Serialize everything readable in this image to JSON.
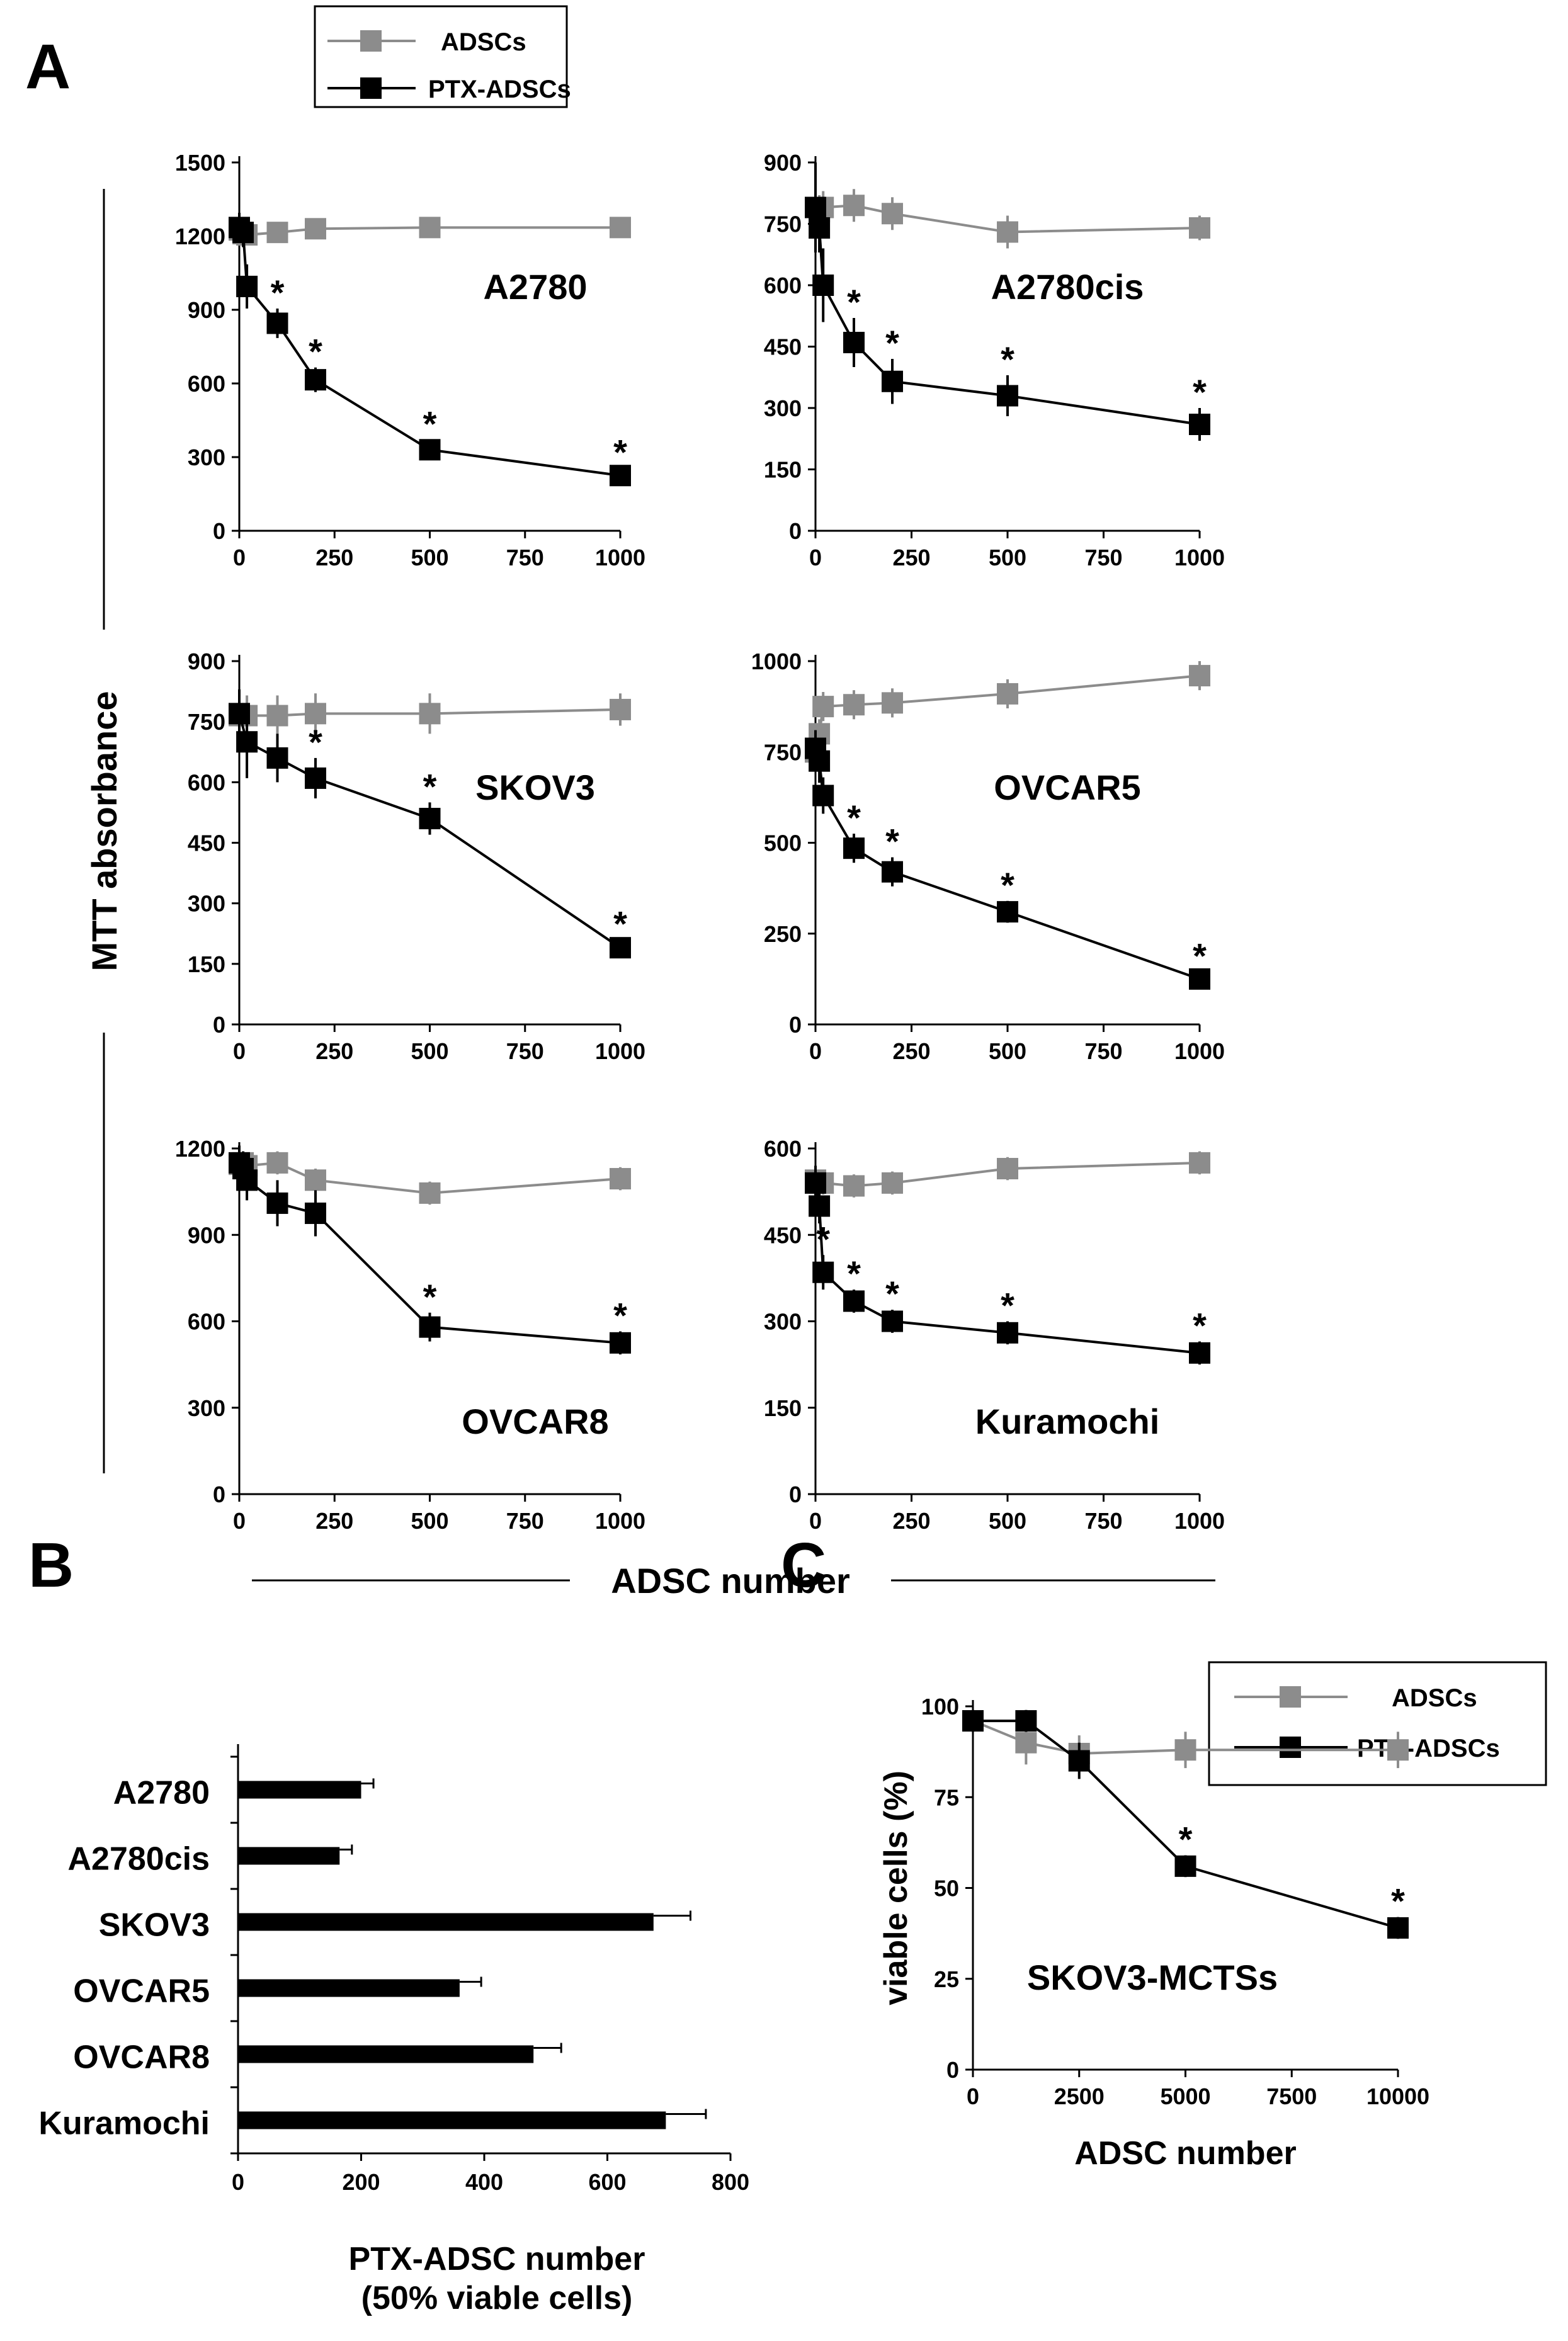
{
  "panel_labels": {
    "a": "A",
    "b": "B",
    "c": "C"
  },
  "legend": {
    "adscs": "ADSCs",
    "ptx": "PTX-ADSCs"
  },
  "shared_labels": {
    "ylabel_a": "MTT absorbance",
    "xlabel_a": "ADSC number"
  },
  "colors": {
    "adscs": "#8c8c8c",
    "ptx": "#000000"
  },
  "chart_data": [
    {
      "id": "a2780",
      "type": "line",
      "label": "A2780",
      "x": [
        0,
        10,
        20,
        100,
        200,
        500,
        1000
      ],
      "ylim": [
        0,
        1500
      ],
      "yticks": [
        "0",
        "300",
        "600",
        "900",
        "1200",
        "1500"
      ],
      "xticks": [
        "0",
        "250",
        "500",
        "750",
        "1000"
      ],
      "series": [
        {
          "name": "ADSCs",
          "values": [
            1225,
            1210,
            1205,
            1215,
            1230,
            1235,
            1235
          ],
          "errors": [
            40,
            40,
            40,
            40,
            40,
            40,
            40
          ]
        },
        {
          "name": "PTX-ADSCs",
          "values": [
            1235,
            1215,
            995,
            845,
            615,
            330,
            225
          ],
          "errors": [
            60,
            60,
            90,
            60,
            50,
            40,
            30
          ],
          "stars": [
            false,
            false,
            false,
            true,
            true,
            true,
            true
          ]
        }
      ]
    },
    {
      "id": "a2780cis",
      "type": "line",
      "label": "A2780cis",
      "x": [
        0,
        10,
        20,
        100,
        200,
        500,
        1000
      ],
      "ylim": [
        0,
        900
      ],
      "yticks": [
        "0",
        "150",
        "300",
        "450",
        "600",
        "750",
        "900"
      ],
      "xticks": [
        "0",
        "250",
        "500",
        "750",
        "1000"
      ],
      "series": [
        {
          "name": "ADSCs",
          "values": [
            790,
            780,
            790,
            795,
            775,
            730,
            740
          ],
          "errors": [
            40,
            40,
            40,
            40,
            40,
            40,
            30
          ]
        },
        {
          "name": "PTX-ADSCs",
          "values": [
            790,
            740,
            600,
            460,
            365,
            330,
            260
          ],
          "errors": [
            110,
            60,
            90,
            60,
            55,
            50,
            40
          ],
          "stars": [
            false,
            false,
            true,
            true,
            true,
            true,
            true
          ]
        }
      ]
    },
    {
      "id": "skov3",
      "type": "line",
      "label": "SKOV3",
      "x": [
        0,
        20,
        100,
        200,
        500,
        1000
      ],
      "ylim": [
        0,
        900
      ],
      "yticks": [
        "0",
        "150",
        "300",
        "450",
        "600",
        "750",
        "900"
      ],
      "xticks": [
        "0",
        "250",
        "500",
        "750",
        "1000"
      ],
      "series": [
        {
          "name": "ADSCs",
          "values": [
            765,
            765,
            765,
            770,
            770,
            780
          ],
          "errors": [
            50,
            50,
            50,
            50,
            50,
            40
          ]
        },
        {
          "name": "PTX-ADSCs",
          "values": [
            770,
            700,
            660,
            610,
            510,
            190
          ],
          "errors": [
            60,
            90,
            60,
            50,
            40,
            20
          ],
          "stars": [
            false,
            false,
            false,
            true,
            true,
            true
          ]
        }
      ]
    },
    {
      "id": "ovcar5",
      "type": "line",
      "label": "OVCAR5",
      "x": [
        0,
        10,
        20,
        100,
        200,
        500,
        1000
      ],
      "ylim": [
        0,
        1000
      ],
      "yticks": [
        "0",
        "250",
        "500",
        "750",
        "1000"
      ],
      "xticks": [
        "0",
        "250",
        "500",
        "750",
        "1000"
      ],
      "series": [
        {
          "name": "ADSCs",
          "values": [
            750,
            800,
            875,
            880,
            885,
            910,
            960
          ],
          "errors": [
            40,
            40,
            40,
            40,
            40,
            40,
            40
          ]
        },
        {
          "name": "PTX-ADSCs",
          "values": [
            760,
            725,
            630,
            485,
            420,
            310,
            125
          ],
          "errors": [
            50,
            60,
            50,
            40,
            40,
            30,
            20
          ],
          "stars": [
            false,
            false,
            false,
            true,
            true,
            true,
            true
          ]
        }
      ]
    },
    {
      "id": "ovcar8",
      "type": "line",
      "label": "OVCAR8",
      "x": [
        0,
        10,
        20,
        100,
        200,
        500,
        1000
      ],
      "ylim": [
        0,
        1200
      ],
      "yticks": [
        "0",
        "300",
        "600",
        "900",
        "1200"
      ],
      "xticks": [
        "0",
        "250",
        "500",
        "750",
        "1000"
      ],
      "series": [
        {
          "name": "ADSCs",
          "values": [
            1145,
            1150,
            1140,
            1150,
            1090,
            1045,
            1095
          ],
          "errors": [
            40,
            40,
            40,
            40,
            40,
            40,
            40
          ]
        },
        {
          "name": "PTX-ADSCs",
          "values": [
            1150,
            1130,
            1090,
            1010,
            975,
            580,
            525
          ],
          "errors": [
            60,
            60,
            70,
            80,
            80,
            50,
            40
          ],
          "stars": [
            false,
            false,
            false,
            false,
            false,
            true,
            true
          ]
        }
      ]
    },
    {
      "id": "kuramochi",
      "type": "line",
      "label": "Kuramochi",
      "x": [
        0,
        10,
        20,
        100,
        200,
        500,
        1000
      ],
      "ylim": [
        0,
        600
      ],
      "yticks": [
        "0",
        "150",
        "300",
        "450",
        "600"
      ],
      "xticks": [
        "0",
        "250",
        "500",
        "750",
        "1000"
      ],
      "series": [
        {
          "name": "ADSCs",
          "values": [
            545,
            540,
            540,
            535,
            540,
            565,
            575
          ],
          "errors": [
            20,
            20,
            20,
            20,
            20,
            20,
            20
          ]
        },
        {
          "name": "PTX-ADSCs",
          "values": [
            540,
            500,
            385,
            335,
            300,
            280,
            245
          ],
          "errors": [
            30,
            30,
            30,
            20,
            20,
            20,
            20
          ],
          "stars": [
            false,
            false,
            true,
            true,
            true,
            true,
            true
          ]
        }
      ]
    },
    {
      "id": "b",
      "type": "bar",
      "orientation": "horizontal",
      "categories": [
        "A2780",
        "A2780cis",
        "SKOV3",
        "OVCAR5",
        "OVCAR8",
        "Kuramochi"
      ],
      "values": [
        200,
        165,
        675,
        360,
        480,
        695
      ],
      "errors": [
        20,
        20,
        60,
        35,
        45,
        65
      ],
      "xlim": [
        0,
        800
      ],
      "xticks": [
        "0",
        "200",
        "400",
        "600",
        "800"
      ],
      "xlabel": [
        "PTX-ADSC number",
        "(50% viable cells)"
      ]
    },
    {
      "id": "c",
      "type": "line",
      "label": "SKOV3-MCTSs",
      "x": [
        0,
        1250,
        2500,
        5000,
        10000
      ],
      "ylim": [
        0,
        100
      ],
      "yticks": [
        "0",
        "25",
        "50",
        "75",
        "100"
      ],
      "xticks": [
        "0",
        "2500",
        "5000",
        "7500",
        "10000"
      ],
      "ylabel": "viable cells (%)",
      "xlabel": "ADSC number",
      "series": [
        {
          "name": "ADSCs",
          "values": [
            96,
            90,
            87,
            88,
            88
          ],
          "errors": [
            3,
            6,
            5,
            5,
            5
          ]
        },
        {
          "name": "PTX-ADSCs",
          "values": [
            96,
            96,
            85,
            56,
            39
          ],
          "errors": [
            3,
            3,
            5,
            3,
            3
          ],
          "stars": [
            false,
            false,
            false,
            true,
            true
          ]
        }
      ]
    }
  ]
}
